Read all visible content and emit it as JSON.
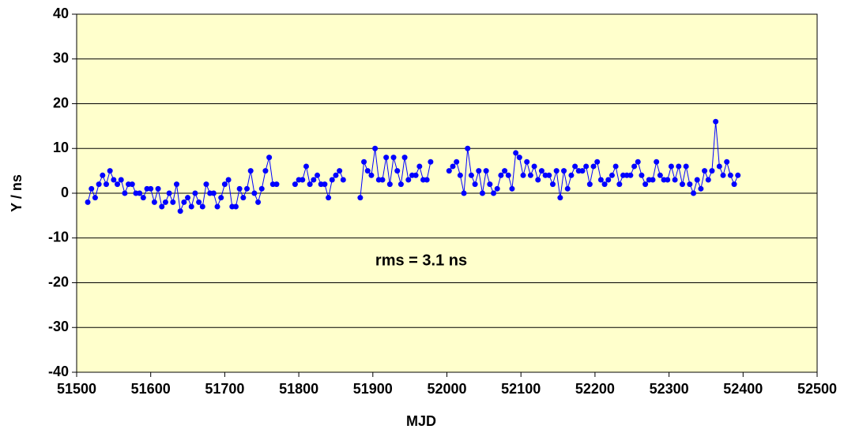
{
  "chart_data": {
    "type": "line",
    "xlabel": "MJD",
    "ylabel": "Y / ns",
    "annotation": "rms = 3.1 ns",
    "xlim": [
      51500,
      52500
    ],
    "xticks": [
      51500,
      51600,
      51700,
      51800,
      51900,
      52000,
      52100,
      52200,
      52300,
      52400,
      52500
    ],
    "ylim": [
      -40,
      40
    ],
    "yticks": [
      -40,
      -30,
      -20,
      -10,
      0,
      10,
      20,
      30,
      40
    ],
    "grid": true,
    "series": [
      {
        "color": "#0000ff",
        "x": [
          51515,
          51520,
          51525,
          51530,
          51535,
          51540,
          51545,
          51550,
          51555,
          51560,
          51565,
          51570,
          51575,
          51580,
          51585,
          51590,
          51595,
          51600,
          51605,
          51610,
          51615,
          51620,
          51625,
          51630,
          51635,
          51640,
          51645,
          51650,
          51655,
          51660,
          51665,
          51670,
          51675,
          51680,
          51685,
          51690,
          51695,
          51700,
          51705,
          51710,
          51715,
          51720,
          51725,
          51730,
          51735,
          51740,
          51745,
          51750,
          51755,
          51760,
          51765,
          51770,
          null,
          51795,
          51800,
          51805,
          51810,
          51815,
          51820,
          51825,
          51830,
          51835,
          51840,
          51845,
          51850,
          51855,
          51860,
          null,
          51883,
          51888,
          51893,
          51898,
          51903,
          51908,
          51913,
          51918,
          51923,
          51928,
          51933,
          51938,
          51943,
          51948,
          51953,
          51958,
          51963,
          51968,
          51973,
          51978,
          null,
          52003,
          52008,
          52013,
          52018,
          52023,
          52028,
          52033,
          52038,
          52043,
          52048,
          52053,
          52058,
          52063,
          52068,
          52073,
          52078,
          52083,
          52088,
          52093,
          52098,
          52103,
          52108,
          52113,
          52118,
          52123,
          52128,
          52133,
          52138,
          52143,
          52148,
          52153,
          52158,
          52163,
          52168,
          52173,
          52178,
          52183,
          52188,
          52193,
          52198,
          52203,
          52208,
          52213,
          52218,
          52223,
          52228,
          52233,
          52238,
          52243,
          52248,
          52253,
          52258,
          52263,
          52268,
          52273,
          52278,
          52283,
          52288,
          52293,
          52298,
          52303,
          52308,
          52313,
          52318,
          52323,
          52328,
          52333,
          52338,
          52343,
          52348,
          52353,
          52358,
          52363,
          52368,
          52373,
          52378,
          52383,
          52388,
          52393
        ],
        "values": [
          -2,
          1,
          -1,
          2,
          4,
          2,
          5,
          3,
          2,
          3,
          0,
          2,
          2,
          0,
          0,
          -1,
          1,
          1,
          -2,
          1,
          -3,
          -2,
          0,
          -2,
          2,
          -4,
          -2,
          -1,
          -3,
          0,
          -2,
          -3,
          2,
          0,
          0,
          -3,
          -1,
          2,
          3,
          -3,
          -3,
          1,
          -1,
          1,
          5,
          0,
          -2,
          1,
          5,
          8,
          2,
          2,
          null,
          2,
          3,
          3,
          6,
          2,
          3,
          4,
          2,
          2,
          -1,
          3,
          4,
          5,
          3,
          null,
          -1,
          7,
          5,
          4,
          10,
          3,
          3,
          8,
          2,
          8,
          5,
          2,
          8,
          3,
          4,
          4,
          6,
          3,
          3,
          7,
          null,
          5,
          6,
          7,
          4,
          0,
          10,
          4,
          2,
          5,
          0,
          5,
          2,
          0,
          1,
          4,
          5,
          4,
          1,
          9,
          8,
          4,
          7,
          4,
          6,
          3,
          5,
          4,
          4,
          2,
          5,
          -1,
          5,
          1,
          4,
          6,
          5,
          5,
          6,
          2,
          6,
          7,
          3,
          2,
          3,
          4,
          6,
          2,
          4,
          4,
          4,
          6,
          7,
          4,
          2,
          3,
          3,
          7,
          4,
          3,
          3,
          6,
          3,
          6,
          2,
          6,
          2,
          0,
          3,
          1,
          5,
          3,
          5,
          16,
          6,
          4,
          7,
          4,
          2,
          4
        ]
      }
    ]
  }
}
